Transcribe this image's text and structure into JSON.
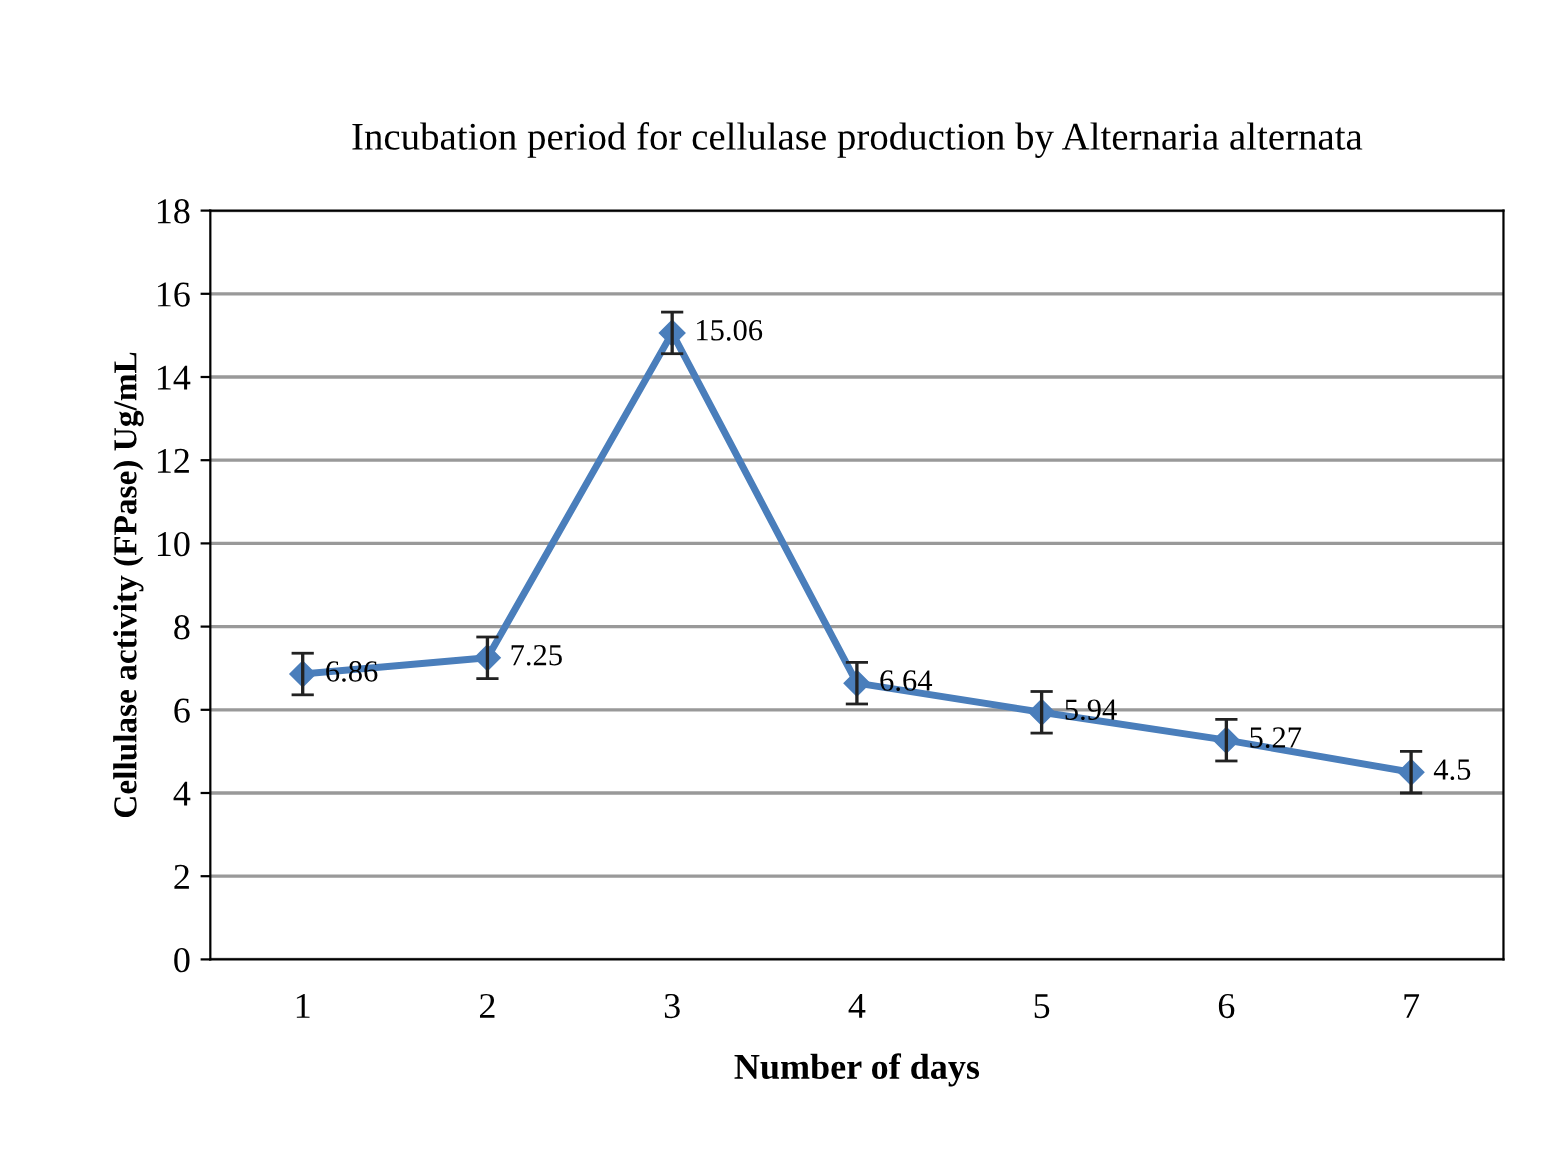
{
  "chart_data": {
    "type": "line",
    "title": "Incubation period for cellulase production by Alternaria alternata",
    "xlabel": "Number of days",
    "ylabel": "Cellulase activity (FPase) Ug/mL",
    "categories": [
      "1",
      "2",
      "3",
      "4",
      "5",
      "6",
      "7"
    ],
    "series": [
      {
        "color": "#4a7ebb",
        "values": [
          6.86,
          7.25,
          15.06,
          6.64,
          5.94,
          5.27,
          4.5
        ],
        "errors": [
          0.5,
          0.5,
          0.5,
          0.5,
          0.5,
          0.5,
          0.5
        ]
      }
    ],
    "ylim": [
      0,
      18
    ],
    "yticks": [
      0,
      2,
      4,
      6,
      8,
      10,
      12,
      14,
      16,
      18
    ],
    "grid": "y",
    "marker": "diamond",
    "line_style": "solid",
    "data_labels": true,
    "legend": false
  }
}
